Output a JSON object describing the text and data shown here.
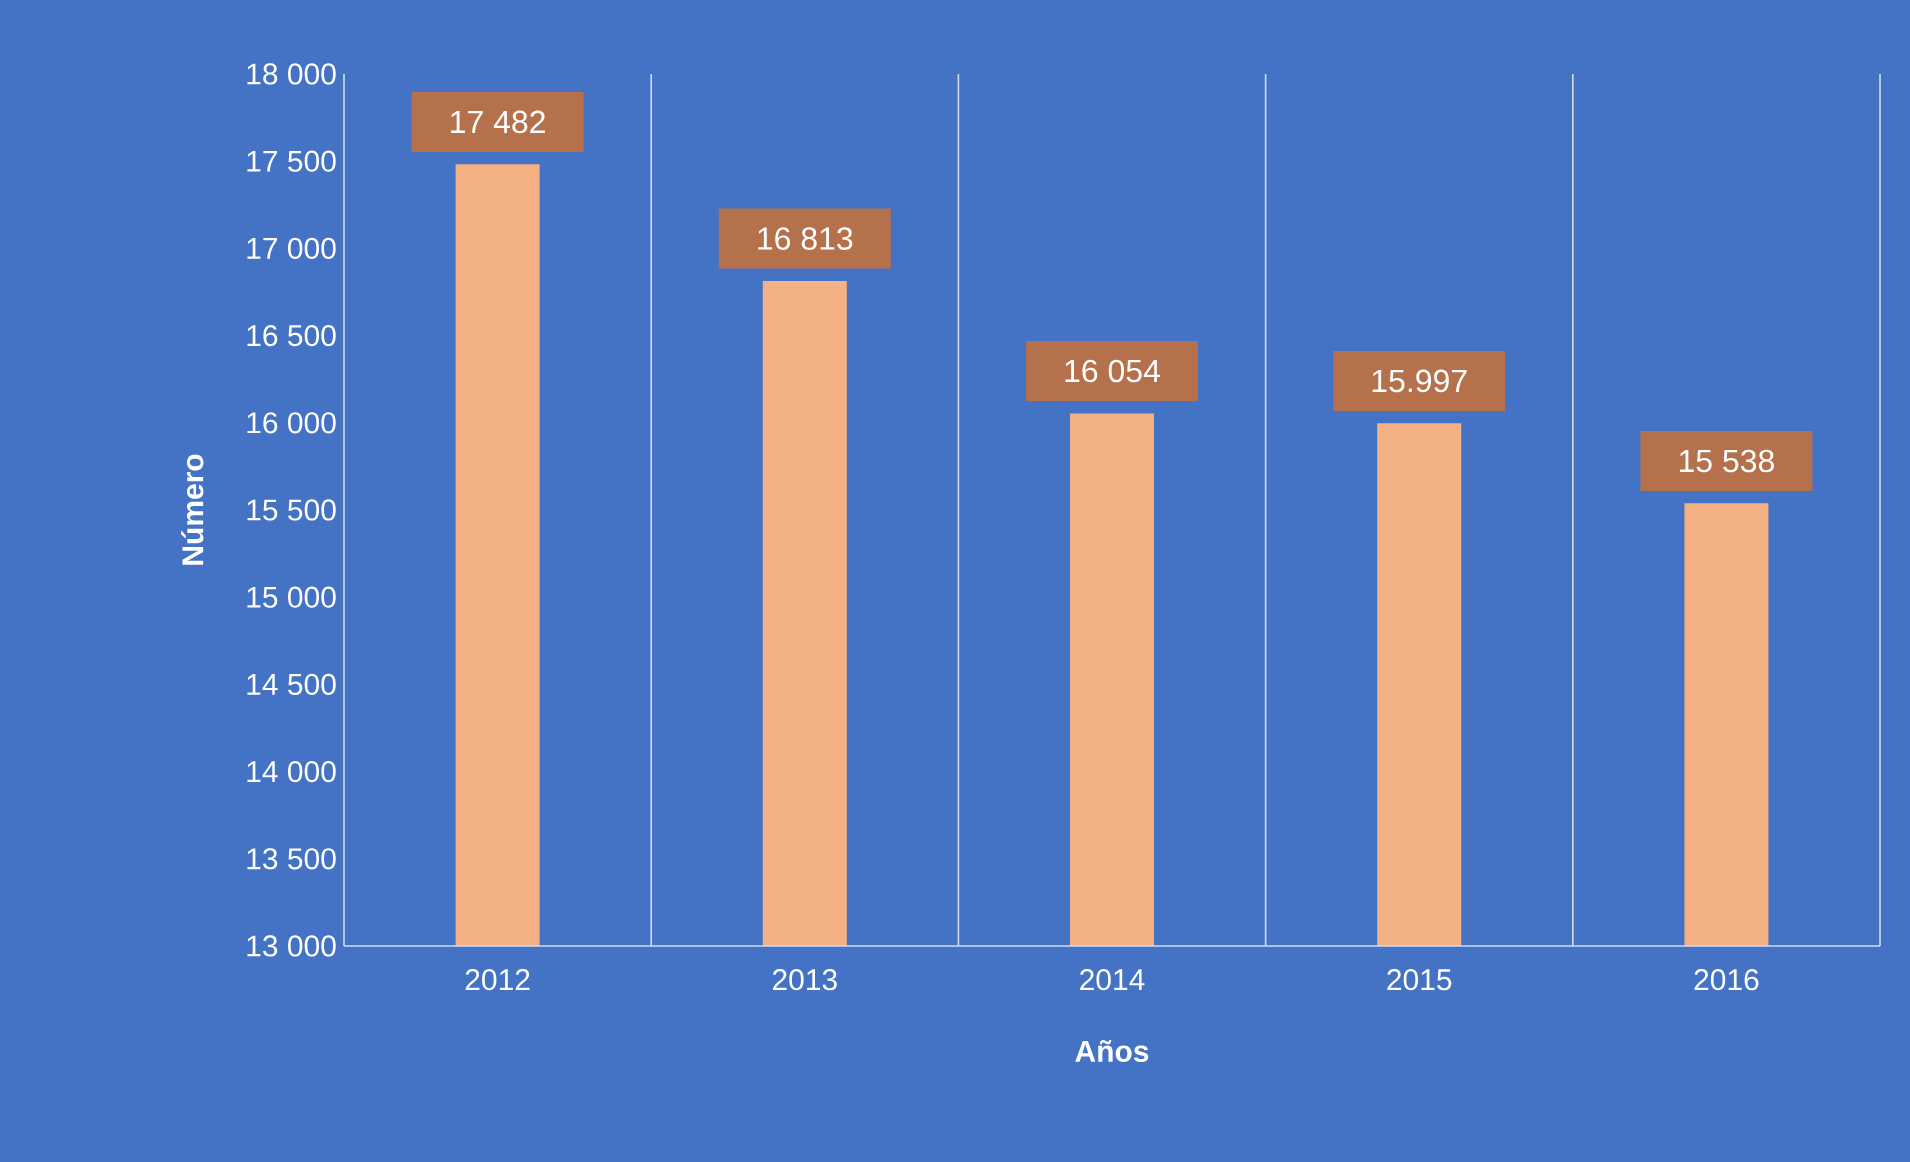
{
  "chart_data": {
    "type": "bar",
    "xlabel": "Años",
    "ylabel": "Número",
    "categories": [
      "2012",
      "2013",
      "2014",
      "2015",
      "2016"
    ],
    "values": [
      17482,
      16813,
      16054,
      15997,
      15538
    ],
    "value_labels": [
      "17 482",
      "16 813",
      "16 054",
      "15.997",
      "15 538"
    ],
    "color": "#f4b183",
    "ylim": [
      13000,
      18000
    ],
    "yticks": [
      {
        "value": 13000,
        "label": "13 000"
      },
      {
        "value": 13500,
        "label": "13 500"
      },
      {
        "value": 14000,
        "label": "14 000"
      },
      {
        "value": 14500,
        "label": "14 500"
      },
      {
        "value": 15000,
        "label": "15 000"
      },
      {
        "value": 15500,
        "label": "15 500"
      },
      {
        "value": 16000,
        "label": "16 000"
      },
      {
        "value": 16500,
        "label": "16 500"
      },
      {
        "value": 17000,
        "label": "17 000"
      },
      {
        "value": 17500,
        "label": "17 500"
      },
      {
        "value": 18000,
        "label": "18 000"
      }
    ],
    "grid": "x"
  }
}
